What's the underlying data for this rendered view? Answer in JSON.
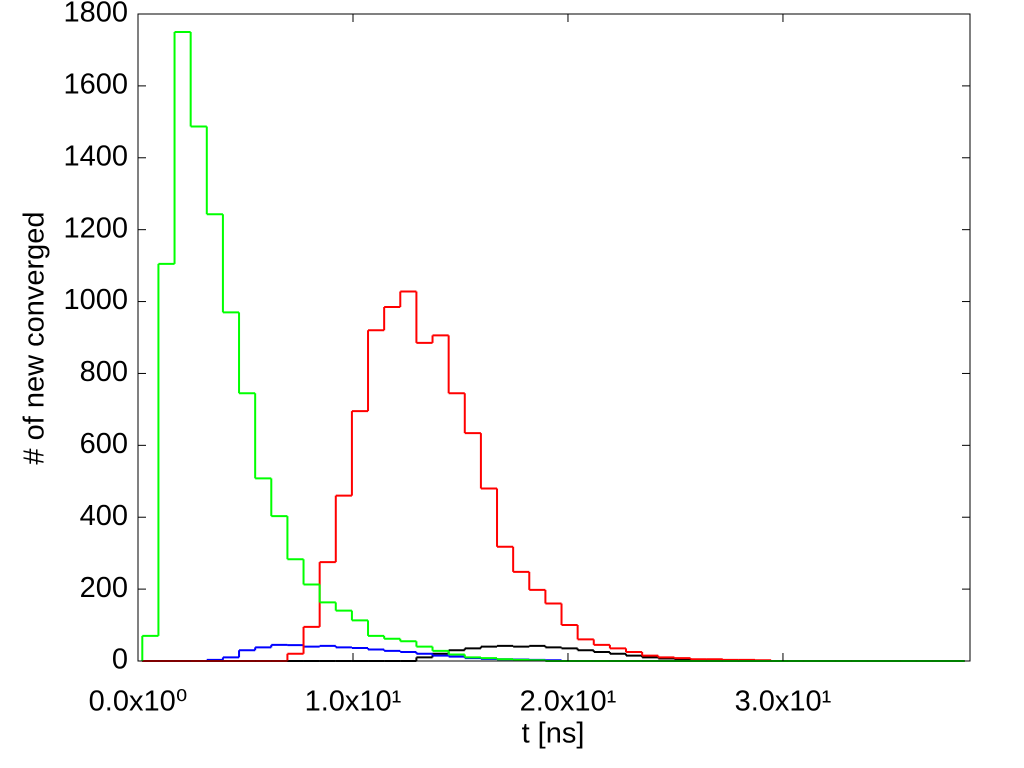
{
  "chart_data": {
    "type": "histogram",
    "xlabel": "t [ns]",
    "ylabel": "# of new converged",
    "xlim": [
      0,
      38.7
    ],
    "ylim": [
      0,
      1800
    ],
    "xticks": [
      {
        "value": 0,
        "label": "0.0x10⁰"
      },
      {
        "value": 10,
        "label": "1.0x10¹"
      },
      {
        "value": 20,
        "label": "2.0x10¹"
      },
      {
        "value": 30,
        "label": "3.0x10¹"
      }
    ],
    "yticks": [
      0,
      200,
      400,
      600,
      800,
      1000,
      1200,
      1400,
      1600,
      1800
    ],
    "bins": [
      0.2,
      0.95,
      1.7,
      2.45,
      3.2,
      3.95,
      4.7,
      5.45,
      6.2,
      6.95,
      7.7,
      8.45,
      9.2,
      9.95,
      10.7,
      11.45,
      12.2,
      12.95,
      13.7,
      14.45,
      15.2,
      15.95,
      16.7,
      17.45,
      18.2,
      18.95,
      19.7,
      20.45,
      21.2,
      21.95,
      22.7,
      23.45,
      24.2,
      24.95,
      25.7,
      26.45,
      27.2,
      27.95,
      28.7,
      29.45,
      30.2,
      30.95,
      31.7,
      32.45,
      33.2,
      33.95,
      34.7,
      35.45,
      36.2,
      36.95,
      37.7,
      38.45
    ],
    "series": [
      {
        "color": "#000000",
        "values": [
          0,
          0,
          0,
          0,
          0,
          0,
          0,
          0,
          0,
          0,
          0,
          0,
          0,
          0,
          0,
          0,
          0,
          10,
          20,
          30,
          35,
          40,
          42,
          40,
          42,
          38,
          35,
          30,
          25,
          20,
          15,
          10,
          7,
          5,
          3,
          2,
          0,
          0,
          0,
          0,
          0,
          0,
          0,
          0,
          0,
          0,
          0,
          0,
          0,
          0,
          0
        ]
      },
      {
        "color": "#0000ff",
        "values": [
          0,
          0,
          0,
          0,
          3,
          10,
          30,
          38,
          45,
          44,
          40,
          42,
          38,
          36,
          32,
          28,
          25,
          20,
          15,
          12,
          8,
          6,
          5,
          4,
          3,
          2,
          0,
          0,
          0,
          0,
          0,
          0,
          0,
          0,
          0,
          0,
          0,
          0,
          0,
          0,
          0,
          0,
          0,
          0,
          0,
          0,
          0,
          0,
          0,
          0,
          0
        ]
      },
      {
        "color": "#ff0000",
        "values": [
          0,
          0,
          0,
          0,
          0,
          0,
          0,
          0,
          0,
          20,
          95,
          275,
          460,
          695,
          920,
          985,
          1028,
          885,
          906,
          745,
          634,
          480,
          318,
          248,
          198,
          160,
          100,
          60,
          45,
          35,
          25,
          15,
          10,
          8,
          5,
          5,
          3,
          3,
          2,
          0,
          0,
          0,
          0,
          0,
          0,
          0,
          0,
          0,
          0,
          0,
          0
        ]
      },
      {
        "color": "#00ff00",
        "values": [
          70,
          1105,
          1750,
          1487,
          1243,
          970,
          745,
          508,
          403,
          283,
          213,
          163,
          140,
          113,
          70,
          62,
          55,
          40,
          28,
          18,
          10,
          8,
          5,
          3,
          2,
          0,
          0,
          0,
          0,
          0,
          0,
          0,
          0,
          0,
          0,
          0,
          0,
          0,
          0,
          0,
          0,
          0,
          0,
          0,
          0,
          0,
          0,
          0,
          0,
          0,
          0
        ]
      }
    ]
  }
}
